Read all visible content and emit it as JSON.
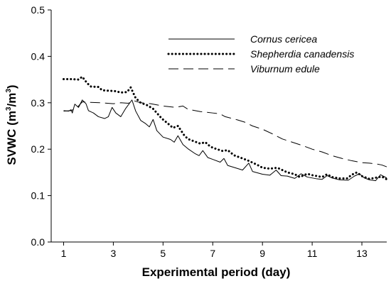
{
  "chart_data": {
    "type": "line",
    "title": "",
    "xlabel": "Experimental period (day)",
    "ylabel_parts": [
      "SVWC (m",
      "3",
      "/m",
      "3",
      ")"
    ],
    "xlim": [
      0.5,
      14
    ],
    "ylim": [
      0.0,
      0.5
    ],
    "xticks": [
      1,
      3,
      5,
      7,
      9,
      11,
      13
    ],
    "yticks": [
      0.0,
      0.1,
      0.2,
      0.3,
      0.4,
      0.5
    ],
    "ytick_labels": [
      "0.0",
      "0.1",
      "0.2",
      "0.3",
      "0.4",
      "0.5"
    ],
    "legend_position": "top-right",
    "grid": false,
    "series": [
      {
        "name": "Cornus cericea",
        "style": "solid",
        "color": "#000000",
        "points": [
          [
            1.0,
            0.283
          ],
          [
            1.2,
            0.282
          ],
          [
            1.3,
            0.285
          ],
          [
            1.35,
            0.278
          ],
          [
            1.45,
            0.297
          ],
          [
            1.6,
            0.29
          ],
          [
            1.75,
            0.306
          ],
          [
            1.9,
            0.298
          ],
          [
            2.0,
            0.283
          ],
          [
            2.2,
            0.278
          ],
          [
            2.4,
            0.27
          ],
          [
            2.65,
            0.266
          ],
          [
            2.8,
            0.27
          ],
          [
            2.95,
            0.29
          ],
          [
            3.1,
            0.278
          ],
          [
            3.3,
            0.27
          ],
          [
            3.5,
            0.288
          ],
          [
            3.75,
            0.306
          ],
          [
            3.9,
            0.282
          ],
          [
            4.1,
            0.262
          ],
          [
            4.3,
            0.255
          ],
          [
            4.45,
            0.248
          ],
          [
            4.6,
            0.264
          ],
          [
            4.75,
            0.24
          ],
          [
            5.0,
            0.226
          ],
          [
            5.3,
            0.221
          ],
          [
            5.45,
            0.215
          ],
          [
            5.6,
            0.229
          ],
          [
            5.8,
            0.21
          ],
          [
            6.0,
            0.201
          ],
          [
            6.3,
            0.19
          ],
          [
            6.45,
            0.186
          ],
          [
            6.6,
            0.197
          ],
          [
            6.8,
            0.182
          ],
          [
            7.0,
            0.178
          ],
          [
            7.3,
            0.172
          ],
          [
            7.45,
            0.18
          ],
          [
            7.6,
            0.165
          ],
          [
            7.9,
            0.16
          ],
          [
            8.2,
            0.155
          ],
          [
            8.45,
            0.17
          ],
          [
            8.6,
            0.152
          ],
          [
            9.0,
            0.146
          ],
          [
            9.3,
            0.144
          ],
          [
            9.55,
            0.155
          ],
          [
            9.75,
            0.143
          ],
          [
            10.0,
            0.142
          ],
          [
            10.3,
            0.137
          ],
          [
            10.55,
            0.147
          ],
          [
            10.8,
            0.14
          ],
          [
            11.2,
            0.136
          ],
          [
            11.4,
            0.135
          ],
          [
            11.6,
            0.143
          ],
          [
            11.8,
            0.138
          ],
          [
            12.1,
            0.134
          ],
          [
            12.45,
            0.133
          ],
          [
            12.7,
            0.142
          ],
          [
            12.9,
            0.147
          ],
          [
            13.1,
            0.138
          ],
          [
            13.3,
            0.134
          ],
          [
            13.55,
            0.132
          ],
          [
            13.75,
            0.145
          ],
          [
            14.0,
            0.138
          ]
        ]
      },
      {
        "name": "Shepherdia canadensis",
        "style": "dotted",
        "color": "#000000",
        "points": [
          [
            1.0,
            0.351
          ],
          [
            1.3,
            0.351
          ],
          [
            1.6,
            0.35
          ],
          [
            1.75,
            0.356
          ],
          [
            1.95,
            0.342
          ],
          [
            2.1,
            0.335
          ],
          [
            2.4,
            0.334
          ],
          [
            2.55,
            0.327
          ],
          [
            2.8,
            0.326
          ],
          [
            3.1,
            0.325
          ],
          [
            3.3,
            0.322
          ],
          [
            3.55,
            0.323
          ],
          [
            3.7,
            0.333
          ],
          [
            3.9,
            0.31
          ],
          [
            4.1,
            0.3
          ],
          [
            4.35,
            0.295
          ],
          [
            4.6,
            0.287
          ],
          [
            4.75,
            0.278
          ],
          [
            4.95,
            0.266
          ],
          [
            5.2,
            0.255
          ],
          [
            5.4,
            0.246
          ],
          [
            5.6,
            0.25
          ],
          [
            5.85,
            0.23
          ],
          [
            6.0,
            0.222
          ],
          [
            6.3,
            0.216
          ],
          [
            6.5,
            0.212
          ],
          [
            6.7,
            0.215
          ],
          [
            6.85,
            0.208
          ],
          [
            7.0,
            0.203
          ],
          [
            7.4,
            0.196
          ],
          [
            7.6,
            0.198
          ],
          [
            7.85,
            0.187
          ],
          [
            8.2,
            0.18
          ],
          [
            8.4,
            0.176
          ],
          [
            8.6,
            0.171
          ],
          [
            8.8,
            0.166
          ],
          [
            9.0,
            0.16
          ],
          [
            9.3,
            0.158
          ],
          [
            9.6,
            0.16
          ],
          [
            9.8,
            0.155
          ],
          [
            10.0,
            0.15
          ],
          [
            10.3,
            0.146
          ],
          [
            10.5,
            0.14
          ],
          [
            10.8,
            0.147
          ],
          [
            11.0,
            0.144
          ],
          [
            11.4,
            0.14
          ],
          [
            11.6,
            0.146
          ],
          [
            11.8,
            0.14
          ],
          [
            12.1,
            0.137
          ],
          [
            12.4,
            0.137
          ],
          [
            12.6,
            0.145
          ],
          [
            12.8,
            0.15
          ],
          [
            13.0,
            0.142
          ],
          [
            13.3,
            0.136
          ],
          [
            13.6,
            0.139
          ],
          [
            13.8,
            0.141
          ],
          [
            14.0,
            0.135
          ]
        ]
      },
      {
        "name": "Viburnum edule",
        "style": "dashed",
        "color": "#000000",
        "points": [
          [
            1.0,
            0.282
          ],
          [
            1.3,
            0.283
          ],
          [
            1.55,
            0.29
          ],
          [
            1.75,
            0.302
          ],
          [
            2.0,
            0.301
          ],
          [
            2.5,
            0.3
          ],
          [
            3.0,
            0.298
          ],
          [
            3.3,
            0.3
          ],
          [
            3.6,
            0.299
          ],
          [
            3.85,
            0.304
          ],
          [
            4.1,
            0.3
          ],
          [
            4.5,
            0.298
          ],
          [
            5.0,
            0.293
          ],
          [
            5.5,
            0.29
          ],
          [
            5.8,
            0.293
          ],
          [
            6.0,
            0.286
          ],
          [
            6.5,
            0.281
          ],
          [
            7.0,
            0.278
          ],
          [
            7.3,
            0.276
          ],
          [
            7.5,
            0.27
          ],
          [
            8.0,
            0.263
          ],
          [
            8.3,
            0.258
          ],
          [
            8.6,
            0.25
          ],
          [
            9.0,
            0.243
          ],
          [
            9.4,
            0.233
          ],
          [
            9.8,
            0.222
          ],
          [
            10.2,
            0.215
          ],
          [
            10.6,
            0.208
          ],
          [
            11.0,
            0.2
          ],
          [
            11.4,
            0.194
          ],
          [
            11.8,
            0.186
          ],
          [
            12.2,
            0.18
          ],
          [
            12.6,
            0.175
          ],
          [
            13.0,
            0.171
          ],
          [
            13.3,
            0.17
          ],
          [
            13.6,
            0.168
          ],
          [
            13.8,
            0.166
          ],
          [
            14.0,
            0.162
          ]
        ]
      }
    ]
  }
}
